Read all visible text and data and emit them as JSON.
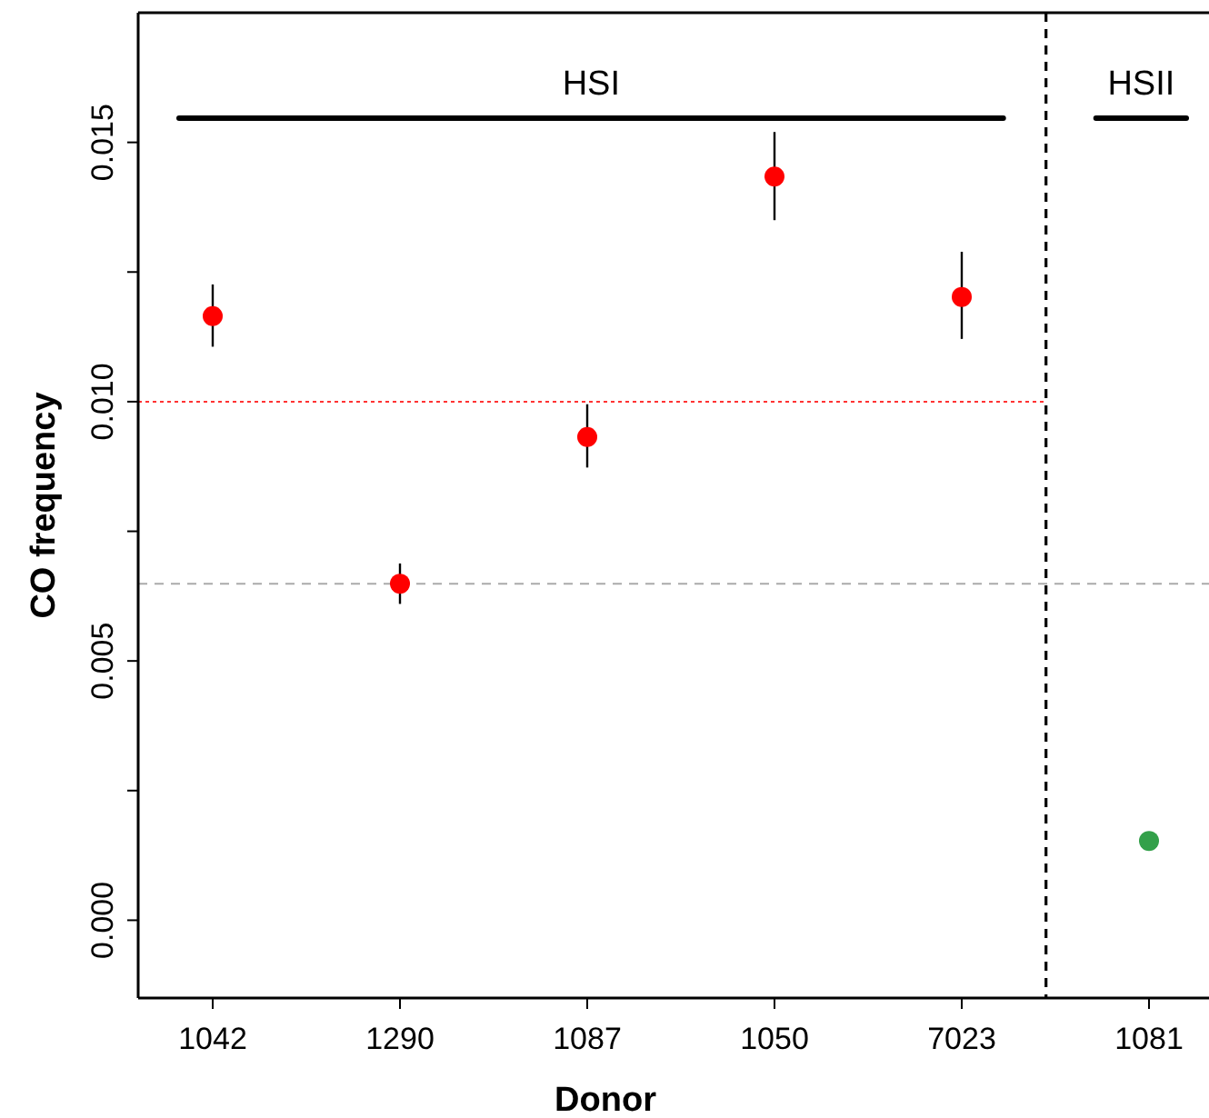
{
  "chart_data": {
    "type": "scatter",
    "xlabel": "Donor",
    "ylabel": "CO frequency",
    "categories": [
      "1042",
      "1290",
      "1087",
      "1050",
      "7023",
      "1081"
    ],
    "ylim": [
      -0.0015,
      0.0175
    ],
    "yticks": [
      {
        "value": 0,
        "label": "0.000"
      },
      {
        "value": 0.0025,
        "label": null
      },
      {
        "value": 0.005,
        "label": "0.005"
      },
      {
        "value": 0.0075,
        "label": null
      },
      {
        "value": 0.01,
        "label": "0.010"
      },
      {
        "value": 0.0125,
        "label": null
      },
      {
        "value": 0.015,
        "label": "0.015"
      }
    ],
    "series": [
      {
        "color": "#ff0000",
        "values": [
          0.01165,
          0.00649,
          0.00932,
          0.01434,
          0.01202,
          null
        ],
        "errors": [
          [
            0.01106,
            0.01226
          ],
          [
            0.0061,
            0.00688
          ],
          [
            0.00873,
            0.00995
          ],
          [
            0.0135,
            0.0152
          ],
          [
            0.01121,
            0.01289
          ],
          null
        ]
      },
      {
        "color": "#33a04a",
        "values": [
          null,
          null,
          null,
          null,
          null,
          0.00153
        ]
      }
    ],
    "marker": "circle",
    "ref_lines": [
      {
        "axis": "y",
        "value": 0.01,
        "color": "#ff3333",
        "line_style": "dotted"
      },
      {
        "axis": "y",
        "value": 0.00649,
        "color": "#aaaaaa",
        "line_style": "dashed"
      }
    ],
    "annotations": [
      "HSI",
      "HSII"
    ]
  }
}
